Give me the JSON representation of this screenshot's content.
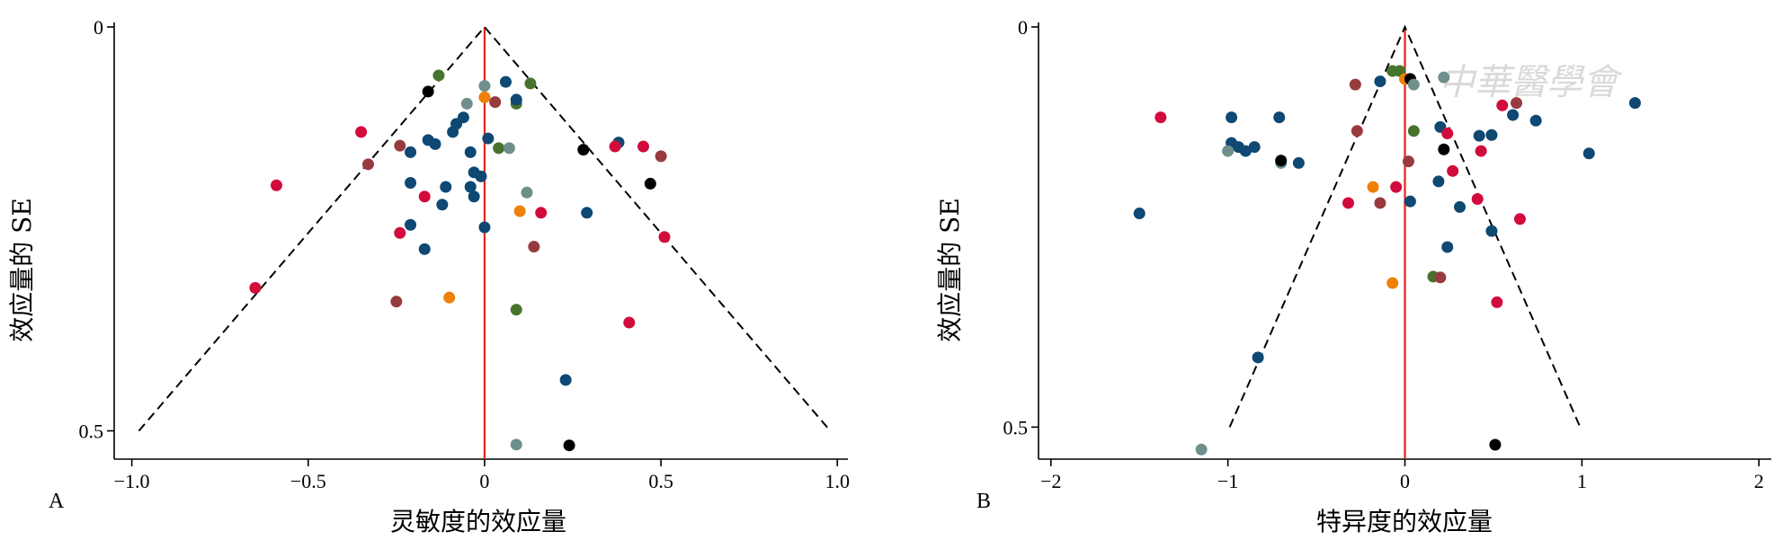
{
  "watermark": "中華醫學會",
  "colors": {
    "navy": "#0e4873",
    "crimson": "#d20b3d",
    "maroon": "#983b3e",
    "olive": "#48732c",
    "gray": "#6e8f8b",
    "orange": "#ef8008",
    "black": "#000000",
    "ref_line": "#e8221b"
  },
  "chart_data": [
    {
      "type": "scatter",
      "panel_label": "A",
      "xlabel": "灵敏度的效应量",
      "ylabel": "效应量的 SE",
      "xlim": [
        -1.05,
        1.03
      ],
      "ylim_reversed": [
        0,
        0.535
      ],
      "xticks": [
        -1.0,
        -0.5,
        0,
        0.5,
        1.0
      ],
      "xtick_labels": [
        "−1.0",
        "−0.5",
        "0",
        "0.5",
        "1.0"
      ],
      "yticks": [
        0,
        0.5
      ],
      "ytick_labels": [
        "0",
        "0.5"
      ],
      "reference_line_x": 0,
      "funnel_limits": {
        "apex": [
          0,
          0
        ],
        "base_se": 0.5,
        "base_left": -0.98,
        "base_right": 0.98
      },
      "points": [
        {
          "x": -0.13,
          "y": 0.06,
          "c": "olive"
        },
        {
          "x": -0.16,
          "y": 0.08,
          "c": "black"
        },
        {
          "x": 0.0,
          "y": 0.073,
          "c": "gray"
        },
        {
          "x": 0.06,
          "y": 0.068,
          "c": "navy"
        },
        {
          "x": 0.13,
          "y": 0.07,
          "c": "olive"
        },
        {
          "x": -0.05,
          "y": 0.095,
          "c": "gray"
        },
        {
          "x": 0.0,
          "y": 0.087,
          "c": "orange"
        },
        {
          "x": 0.03,
          "y": 0.093,
          "c": "maroon"
        },
        {
          "x": 0.09,
          "y": 0.095,
          "c": "olive"
        },
        {
          "x": 0.09,
          "y": 0.09,
          "c": "navy"
        },
        {
          "x": -0.06,
          "y": 0.112,
          "c": "navy"
        },
        {
          "x": -0.08,
          "y": 0.12,
          "c": "navy"
        },
        {
          "x": -0.09,
          "y": 0.13,
          "c": "navy"
        },
        {
          "x": -0.35,
          "y": 0.13,
          "c": "crimson"
        },
        {
          "x": -0.16,
          "y": 0.14,
          "c": "navy"
        },
        {
          "x": -0.14,
          "y": 0.145,
          "c": "navy"
        },
        {
          "x": 0.01,
          "y": 0.138,
          "c": "navy"
        },
        {
          "x": 0.04,
          "y": 0.15,
          "c": "olive"
        },
        {
          "x": 0.07,
          "y": 0.15,
          "c": "gray"
        },
        {
          "x": -0.24,
          "y": 0.147,
          "c": "maroon"
        },
        {
          "x": -0.21,
          "y": 0.155,
          "c": "navy"
        },
        {
          "x": -0.04,
          "y": 0.155,
          "c": "navy"
        },
        {
          "x": 0.28,
          "y": 0.152,
          "c": "black"
        },
        {
          "x": 0.38,
          "y": 0.143,
          "c": "navy"
        },
        {
          "x": 0.37,
          "y": 0.148,
          "c": "crimson"
        },
        {
          "x": 0.45,
          "y": 0.148,
          "c": "crimson"
        },
        {
          "x": 0.5,
          "y": 0.16,
          "c": "maroon"
        },
        {
          "x": -0.33,
          "y": 0.17,
          "c": "maroon"
        },
        {
          "x": -0.59,
          "y": 0.196,
          "c": "crimson"
        },
        {
          "x": -0.21,
          "y": 0.193,
          "c": "navy"
        },
        {
          "x": -0.11,
          "y": 0.198,
          "c": "navy"
        },
        {
          "x": -0.04,
          "y": 0.198,
          "c": "navy"
        },
        {
          "x": -0.03,
          "y": 0.18,
          "c": "navy"
        },
        {
          "x": -0.01,
          "y": 0.185,
          "c": "navy"
        },
        {
          "x": 0.47,
          "y": 0.194,
          "c": "black"
        },
        {
          "x": 0.12,
          "y": 0.205,
          "c": "gray"
        },
        {
          "x": -0.17,
          "y": 0.21,
          "c": "crimson"
        },
        {
          "x": -0.12,
          "y": 0.22,
          "c": "navy"
        },
        {
          "x": -0.03,
          "y": 0.21,
          "c": "navy"
        },
        {
          "x": 0.1,
          "y": 0.228,
          "c": "orange"
        },
        {
          "x": 0.16,
          "y": 0.23,
          "c": "crimson"
        },
        {
          "x": 0.29,
          "y": 0.23,
          "c": "navy"
        },
        {
          "x": -0.21,
          "y": 0.245,
          "c": "navy"
        },
        {
          "x": -0.24,
          "y": 0.255,
          "c": "crimson"
        },
        {
          "x": 0.0,
          "y": 0.248,
          "c": "navy"
        },
        {
          "x": 0.51,
          "y": 0.26,
          "c": "crimson"
        },
        {
          "x": -0.17,
          "y": 0.275,
          "c": "navy"
        },
        {
          "x": 0.14,
          "y": 0.272,
          "c": "maroon"
        },
        {
          "x": -0.65,
          "y": 0.323,
          "c": "crimson"
        },
        {
          "x": -0.25,
          "y": 0.34,
          "c": "maroon"
        },
        {
          "x": -0.1,
          "y": 0.335,
          "c": "orange"
        },
        {
          "x": 0.09,
          "y": 0.35,
          "c": "olive"
        },
        {
          "x": 0.41,
          "y": 0.366,
          "c": "crimson"
        },
        {
          "x": 0.23,
          "y": 0.437,
          "c": "navy"
        },
        {
          "x": 0.09,
          "y": 0.517,
          "c": "gray"
        },
        {
          "x": 0.24,
          "y": 0.518,
          "c": "black"
        }
      ]
    },
    {
      "type": "scatter",
      "panel_label": "B",
      "xlabel": "特异度的效应量",
      "ylabel": "效应量的 SE",
      "xlim": [
        -2.07,
        2.07
      ],
      "ylim_reversed": [
        0,
        0.54
      ],
      "xticks": [
        -2,
        -1,
        0,
        1,
        2
      ],
      "xtick_labels": [
        "−2",
        "−1",
        "0",
        "1",
        "2"
      ],
      "yticks": [
        0,
        0.5
      ],
      "ytick_labels": [
        "0",
        "0.5"
      ],
      "reference_line_x": 0,
      "funnel_limits": {
        "apex": [
          0,
          0
        ],
        "base_se": 0.5,
        "base_left": -0.99,
        "base_right": 0.99
      },
      "points": [
        {
          "x": -0.07,
          "y": 0.055,
          "c": "olive"
        },
        {
          "x": -0.03,
          "y": 0.055,
          "c": "olive"
        },
        {
          "x": 0.22,
          "y": 0.063,
          "c": "gray"
        },
        {
          "x": -0.14,
          "y": 0.068,
          "c": "navy"
        },
        {
          "x": 0.0,
          "y": 0.065,
          "c": "orange"
        },
        {
          "x": 0.03,
          "y": 0.065,
          "c": "black"
        },
        {
          "x": 0.05,
          "y": 0.072,
          "c": "gray"
        },
        {
          "x": -0.28,
          "y": 0.072,
          "c": "maroon"
        },
        {
          "x": 0.63,
          "y": 0.095,
          "c": "maroon"
        },
        {
          "x": 0.55,
          "y": 0.098,
          "c": "crimson"
        },
        {
          "x": 1.3,
          "y": 0.095,
          "c": "navy"
        },
        {
          "x": 0.61,
          "y": 0.11,
          "c": "navy"
        },
        {
          "x": 0.74,
          "y": 0.117,
          "c": "navy"
        },
        {
          "x": -1.38,
          "y": 0.113,
          "c": "crimson"
        },
        {
          "x": -0.98,
          "y": 0.113,
          "c": "navy"
        },
        {
          "x": -0.71,
          "y": 0.113,
          "c": "navy"
        },
        {
          "x": 0.05,
          "y": 0.13,
          "c": "olive"
        },
        {
          "x": 0.2,
          "y": 0.125,
          "c": "navy"
        },
        {
          "x": 0.24,
          "y": 0.133,
          "c": "crimson"
        },
        {
          "x": -0.27,
          "y": 0.13,
          "c": "maroon"
        },
        {
          "x": 0.42,
          "y": 0.136,
          "c": "navy"
        },
        {
          "x": 0.49,
          "y": 0.135,
          "c": "navy"
        },
        {
          "x": -0.98,
          "y": 0.145,
          "c": "navy"
        },
        {
          "x": -0.94,
          "y": 0.15,
          "c": "navy"
        },
        {
          "x": -1.0,
          "y": 0.155,
          "c": "gray"
        },
        {
          "x": -0.9,
          "y": 0.155,
          "c": "navy"
        },
        {
          "x": -0.85,
          "y": 0.15,
          "c": "navy"
        },
        {
          "x": 0.22,
          "y": 0.153,
          "c": "black"
        },
        {
          "x": 0.43,
          "y": 0.155,
          "c": "crimson"
        },
        {
          "x": 1.04,
          "y": 0.158,
          "c": "navy"
        },
        {
          "x": -0.7,
          "y": 0.17,
          "c": "gray"
        },
        {
          "x": -0.7,
          "y": 0.167,
          "c": "black"
        },
        {
          "x": -0.6,
          "y": 0.17,
          "c": "navy"
        },
        {
          "x": 0.02,
          "y": 0.168,
          "c": "maroon"
        },
        {
          "x": 0.27,
          "y": 0.18,
          "c": "crimson"
        },
        {
          "x": 0.19,
          "y": 0.193,
          "c": "navy"
        },
        {
          "x": -0.18,
          "y": 0.2,
          "c": "orange"
        },
        {
          "x": -0.05,
          "y": 0.2,
          "c": "crimson"
        },
        {
          "x": -0.32,
          "y": 0.22,
          "c": "crimson"
        },
        {
          "x": -0.14,
          "y": 0.22,
          "c": "maroon"
        },
        {
          "x": 0.03,
          "y": 0.218,
          "c": "navy"
        },
        {
          "x": 0.31,
          "y": 0.225,
          "c": "navy"
        },
        {
          "x": 0.41,
          "y": 0.215,
          "c": "crimson"
        },
        {
          "x": -1.5,
          "y": 0.233,
          "c": "navy"
        },
        {
          "x": 0.65,
          "y": 0.24,
          "c": "crimson"
        },
        {
          "x": 0.49,
          "y": 0.255,
          "c": "navy"
        },
        {
          "x": 0.24,
          "y": 0.275,
          "c": "navy"
        },
        {
          "x": -0.07,
          "y": 0.32,
          "c": "orange"
        },
        {
          "x": 0.16,
          "y": 0.312,
          "c": "olive"
        },
        {
          "x": 0.2,
          "y": 0.313,
          "c": "maroon"
        },
        {
          "x": 0.52,
          "y": 0.344,
          "c": "crimson"
        },
        {
          "x": -0.83,
          "y": 0.413,
          "c": "navy"
        },
        {
          "x": -1.15,
          "y": 0.528,
          "c": "gray"
        },
        {
          "x": 0.51,
          "y": 0.522,
          "c": "black"
        }
      ]
    }
  ]
}
